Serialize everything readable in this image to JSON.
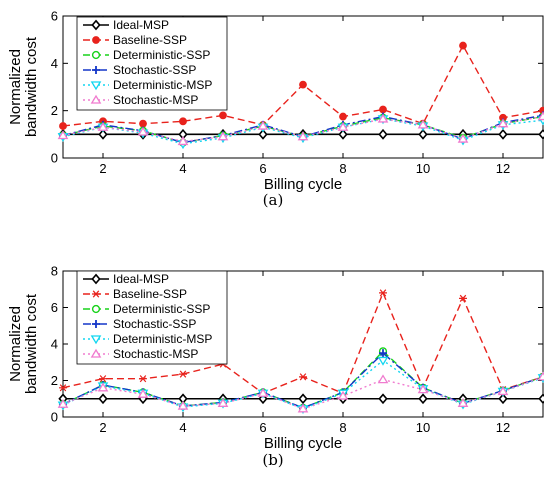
{
  "chart_data": [
    {
      "type": "line",
      "caption": "(a)",
      "xlabel": "Billing cycle",
      "ylabel": [
        "Normalized",
        "bandwidth cost"
      ],
      "xlim": [
        1,
        13
      ],
      "ylim": [
        0,
        6
      ],
      "xticks": [
        2,
        4,
        6,
        8,
        10,
        12
      ],
      "yticks": [
        0,
        2,
        4,
        6
      ],
      "grid": false,
      "legend_position": "top-left",
      "x": [
        1,
        2,
        3,
        4,
        5,
        6,
        7,
        8,
        9,
        10,
        11,
        12,
        13
      ],
      "series": [
        {
          "name": "Ideal-MSP",
          "color": "#000000",
          "style": "solid",
          "marker": "diamond",
          "values": [
            1.0,
            1.0,
            1.0,
            1.0,
            1.0,
            1.0,
            1.0,
            1.0,
            1.0,
            1.0,
            1.0,
            1.0,
            1.0
          ]
        },
        {
          "name": "Baseline-SSP",
          "color": "#e8221c",
          "style": "dashed",
          "marker": "circle-filled",
          "values": [
            1.35,
            1.55,
            1.45,
            1.55,
            1.8,
            1.4,
            3.1,
            1.75,
            2.05,
            1.45,
            4.75,
            1.7,
            2.0
          ]
        },
        {
          "name": "Deterministic-SSP",
          "color": "#18d21b",
          "style": "dashed",
          "marker": "circle-open",
          "values": [
            0.95,
            1.35,
            1.15,
            0.65,
            0.95,
            1.35,
            0.9,
            1.35,
            1.7,
            1.4,
            0.85,
            1.45,
            1.75
          ]
        },
        {
          "name": "Stochastic-SSP",
          "color": "#1336c8",
          "style": "dashdot",
          "marker": "plus",
          "values": [
            0.95,
            1.4,
            1.15,
            0.65,
            0.95,
            1.4,
            0.9,
            1.4,
            1.75,
            1.4,
            0.8,
            1.5,
            1.8
          ]
        },
        {
          "name": "Deterministic-MSP",
          "color": "#12d6f0",
          "style": "dotted",
          "marker": "triangle-down",
          "values": [
            0.9,
            1.3,
            1.05,
            0.6,
            0.85,
            1.3,
            0.85,
            1.3,
            1.65,
            1.35,
            0.75,
            1.4,
            1.6
          ]
        },
        {
          "name": "Stochastic-MSP",
          "color": "#f07bcf",
          "style": "dotted",
          "marker": "triangle-up",
          "values": [
            0.95,
            1.3,
            1.1,
            0.7,
            0.9,
            1.35,
            0.9,
            1.3,
            1.65,
            1.4,
            0.8,
            1.45,
            1.75
          ]
        }
      ]
    },
    {
      "type": "line",
      "caption": "(b)",
      "xlabel": "Billing cycle",
      "ylabel": [
        "Normalized",
        "bandwidth cost"
      ],
      "xlim": [
        1,
        13
      ],
      "ylim": [
        0,
        8
      ],
      "xticks": [
        2,
        4,
        6,
        8,
        10,
        12
      ],
      "yticks": [
        0,
        2,
        4,
        6,
        8
      ],
      "grid": false,
      "legend_position": "top-left",
      "x": [
        1,
        2,
        3,
        4,
        5,
        6,
        7,
        8,
        9,
        10,
        11,
        12,
        13
      ],
      "series": [
        {
          "name": "Ideal-MSP",
          "color": "#000000",
          "style": "solid",
          "marker": "diamond",
          "values": [
            1.0,
            1.0,
            1.0,
            1.0,
            1.0,
            1.0,
            1.0,
            1.0,
            1.0,
            1.0,
            1.0,
            1.0,
            1.0
          ]
        },
        {
          "name": "Baseline-SSP",
          "color": "#e8221c",
          "style": "dashed",
          "marker": "asterisk",
          "values": [
            1.6,
            2.1,
            2.1,
            2.35,
            2.9,
            1.3,
            2.2,
            1.3,
            6.8,
            1.6,
            6.5,
            1.5,
            2.2
          ]
        },
        {
          "name": "Deterministic-SSP",
          "color": "#18d21b",
          "style": "dashed",
          "marker": "circle-open",
          "values": [
            0.7,
            1.75,
            1.35,
            0.6,
            0.8,
            1.35,
            0.5,
            1.35,
            3.6,
            1.6,
            0.75,
            1.45,
            2.2
          ]
        },
        {
          "name": "Stochastic-SSP",
          "color": "#1336c8",
          "style": "dashdot",
          "marker": "plus",
          "values": [
            0.7,
            1.75,
            1.35,
            0.6,
            0.8,
            1.35,
            0.5,
            1.35,
            3.5,
            1.6,
            0.75,
            1.45,
            2.2
          ]
        },
        {
          "name": "Deterministic-MSP",
          "color": "#12d6f0",
          "style": "dotted",
          "marker": "triangle-down",
          "values": [
            0.65,
            1.7,
            1.3,
            0.55,
            0.75,
            1.3,
            0.45,
            1.3,
            3.1,
            1.55,
            0.7,
            1.4,
            2.15
          ]
        },
        {
          "name": "Stochastic-MSP",
          "color": "#f07bcf",
          "style": "dotted",
          "marker": "triangle-up",
          "values": [
            0.7,
            1.6,
            1.25,
            0.6,
            0.75,
            1.3,
            0.45,
            1.15,
            2.05,
            1.5,
            0.75,
            1.4,
            2.2
          ]
        }
      ]
    }
  ]
}
